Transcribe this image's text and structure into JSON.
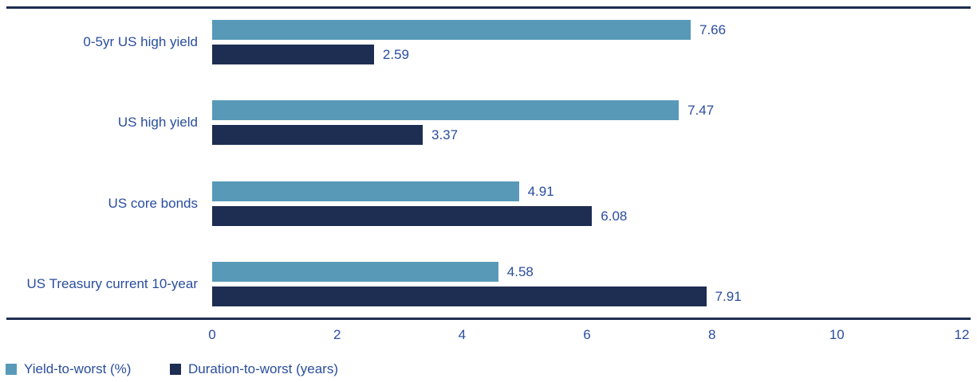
{
  "chart_data": {
    "type": "bar",
    "orientation": "horizontal",
    "categories": [
      "0-5yr US high yield",
      "US high yield",
      "US core bonds",
      "US Treasury current 10-year"
    ],
    "series": [
      {
        "name": "Yield-to-worst (%)",
        "color": "#5899B8",
        "values": [
          7.66,
          7.47,
          4.91,
          4.58
        ]
      },
      {
        "name": "Duration-to-worst (years)",
        "color": "#1E2D52",
        "values": [
          2.59,
          3.37,
          6.08,
          7.91
        ]
      }
    ],
    "xlim": [
      0,
      12
    ],
    "xticks": [
      0,
      2,
      4,
      6,
      8,
      10,
      12
    ],
    "value_labels": true,
    "grid": false,
    "legend_position": "bottom-left"
  },
  "colors": {
    "series_yield": "#5899B8",
    "series_duration": "#1E2D52",
    "text": "#2A4D9E",
    "rule": "#1E2D52",
    "background": "#FFFFFF"
  }
}
